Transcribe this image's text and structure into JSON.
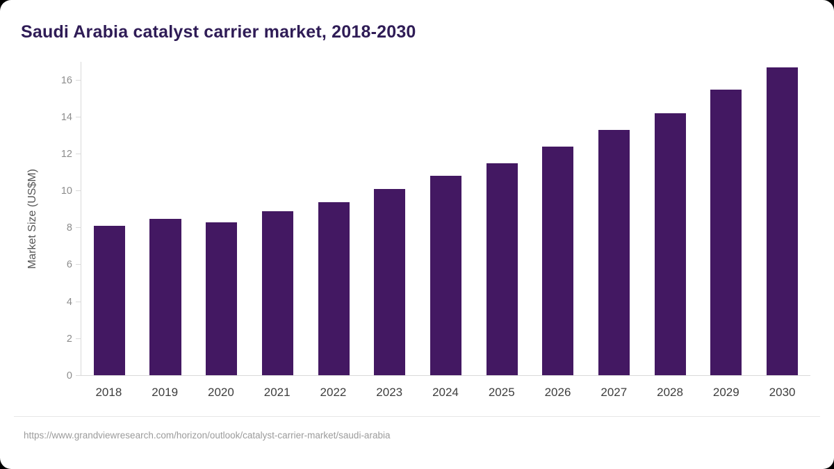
{
  "title": "Saudi Arabia catalyst carrier market, 2018-2030",
  "footer": {
    "url": "https://www.grandviewresearch.com/horizon/outlook/catalyst-carrier-market/saudi-arabia"
  },
  "colors": {
    "bar": "#431862",
    "title": "#2f1c56",
    "axis_line": "#d9d9d9",
    "tick_text": "#8c8c8c",
    "x_text": "#3d3d3d",
    "footer_text": "#9b9b9b"
  },
  "chart_data": {
    "type": "bar",
    "title": "Saudi Arabia catalyst carrier market, 2018-2030",
    "categories": [
      "2018",
      "2019",
      "2020",
      "2021",
      "2022",
      "2023",
      "2024",
      "2025",
      "2026",
      "2027",
      "2028",
      "2029",
      "2030"
    ],
    "values": [
      8.1,
      8.5,
      8.3,
      8.9,
      9.4,
      10.1,
      10.8,
      11.5,
      12.4,
      13.3,
      14.2,
      15.5,
      16.7
    ],
    "xlabel": "",
    "ylabel": "Market Size (US$M)",
    "ylim": [
      0,
      17
    ],
    "yticks": [
      0,
      2,
      4,
      6,
      8,
      10,
      12,
      14,
      16
    ],
    "grid": false,
    "legend": false
  }
}
